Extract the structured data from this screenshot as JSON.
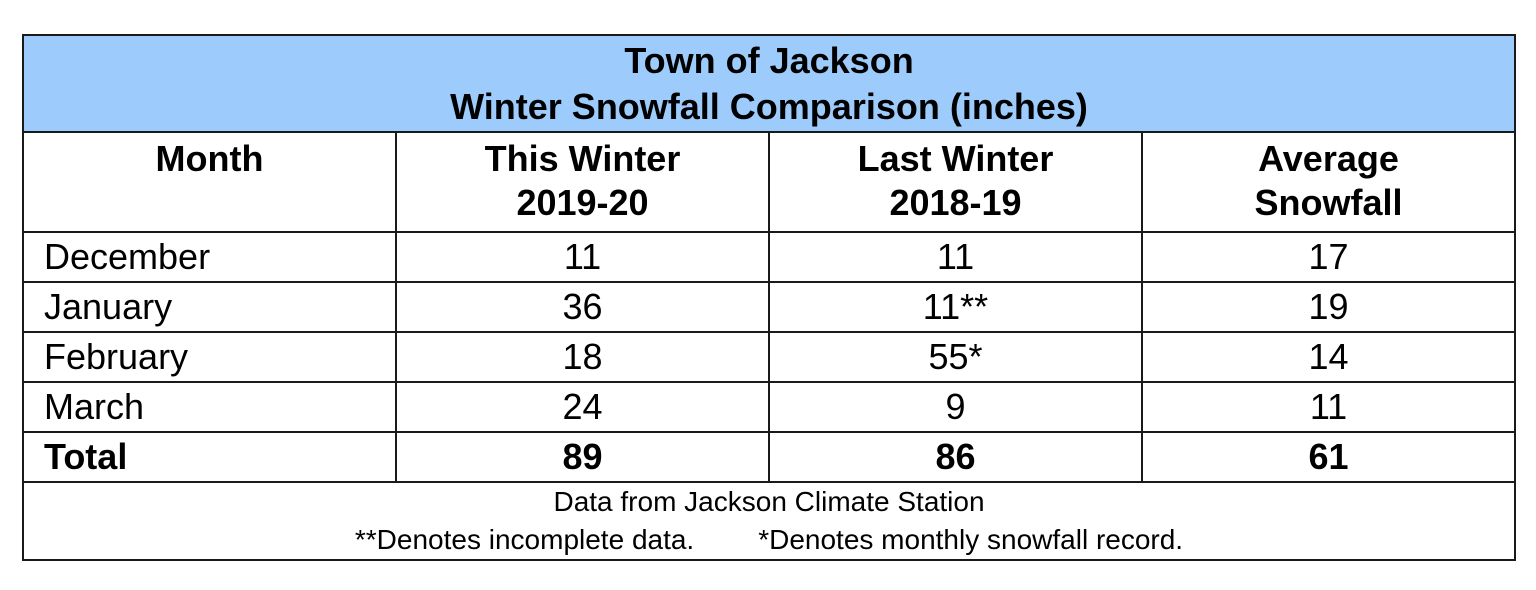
{
  "title": {
    "line1": "Town of Jackson",
    "line2": "Winter Snowfall Comparison (inches)"
  },
  "header_color": "#9ccbfc",
  "columns": [
    {
      "line1": "Month",
      "line2": ""
    },
    {
      "line1": "This Winter",
      "line2": "2019-20"
    },
    {
      "line1": "Last Winter",
      "line2": "2018-19"
    },
    {
      "line1": "Average",
      "line2": "Snowfall"
    }
  ],
  "rows": [
    {
      "month": "December",
      "this_winter": "11",
      "last_winter": "11",
      "average": "17"
    },
    {
      "month": "January",
      "this_winter": "36",
      "last_winter": "11**",
      "average": "19"
    },
    {
      "month": "February",
      "this_winter": "18",
      "last_winter": "55*",
      "average": "14"
    },
    {
      "month": "March",
      "this_winter": "24",
      "last_winter": "9",
      "average": "11"
    }
  ],
  "total": {
    "month": "Total",
    "this_winter": "89",
    "last_winter": "86",
    "average": "61"
  },
  "footer": {
    "source": "Data from Jackson Climate Station",
    "note_incomplete": "**Denotes incomplete data.",
    "note_record": "*Denotes monthly snowfall record."
  }
}
